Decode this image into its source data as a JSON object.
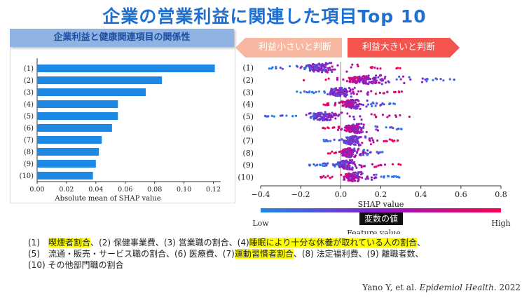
{
  "page": {
    "title": "企業の営業利益に関連した項目Top 10",
    "left_banner": "企業利益と健康関連項目の関係性",
    "arrow_left_label": "利益小さいと判断",
    "arrow_right_label": "利益大きいと判断",
    "feature_badge": "変数の値",
    "citation_author": "Yano Y, et al. ",
    "citation_journal": "Epidemiol Health",
    "citation_year": ". 2022",
    "notes": {
      "n1_prefix": "(1)　",
      "n1_hl": "喫煙者割合",
      "n1_rest": "、(2) 保健事業費、(3) 営業職の割合、(4)",
      "n4_hl": "睡眠により十分な休養が取れている人の割合",
      "n4_rest": "、",
      "line2_a": "(5)　流通・販売・サービス職の割合、(6) 医療費、(7)",
      "n7_hl": "運動習慣者割合",
      "line2_b": "、(8) 法定福利費、(9) 離職者数、",
      "line3": "(10) その他部門職の割合"
    }
  },
  "chart_data": [
    {
      "type": "bar",
      "orientation": "horizontal",
      "categories": [
        "(1)",
        "(2)",
        "(3)",
        "(4)",
        "(5)",
        "(6)",
        "(7)",
        "(8)",
        "(9)",
        "(10)"
      ],
      "values": [
        0.121,
        0.085,
        0.074,
        0.055,
        0.055,
        0.051,
        0.044,
        0.042,
        0.04,
        0.038
      ],
      "xlabel": "Absolute mean of SHAP value",
      "xlim": [
        0.0,
        0.125
      ],
      "xticks": [
        "0.00",
        "0.02",
        "0.04",
        "0.06",
        "0.08",
        "0.10",
        "0.12"
      ],
      "color": "#1e88e5"
    },
    {
      "type": "scatter",
      "subtype": "beeswarm",
      "categories": [
        "(1)",
        "(2)",
        "(3)",
        "(4)",
        "(5)",
        "(6)",
        "(7)",
        "(8)",
        "(9)",
        "(10)"
      ],
      "ranges": [
        [
          -0.38,
          0.3
        ],
        [
          -0.2,
          0.62
        ],
        [
          -0.22,
          0.32
        ],
        [
          -0.1,
          0.27
        ],
        [
          -0.38,
          0.36
        ],
        [
          -0.1,
          0.32
        ],
        [
          -0.1,
          0.29
        ],
        [
          -0.08,
          0.21
        ],
        [
          -0.16,
          0.3
        ],
        [
          -0.1,
          0.3
        ]
      ],
      "xlabel": "SHAP value",
      "xlim": [
        -0.4,
        0.8
      ],
      "xticks": [
        "−0.4",
        "−0.2",
        "0.0",
        "0.2",
        "0.4",
        "0.6",
        "0.8"
      ],
      "colorbar": {
        "low": "Low",
        "high": "High",
        "label": "Feature value",
        "low_color": "#1e88e5",
        "high_color": "#ff0052"
      }
    }
  ]
}
